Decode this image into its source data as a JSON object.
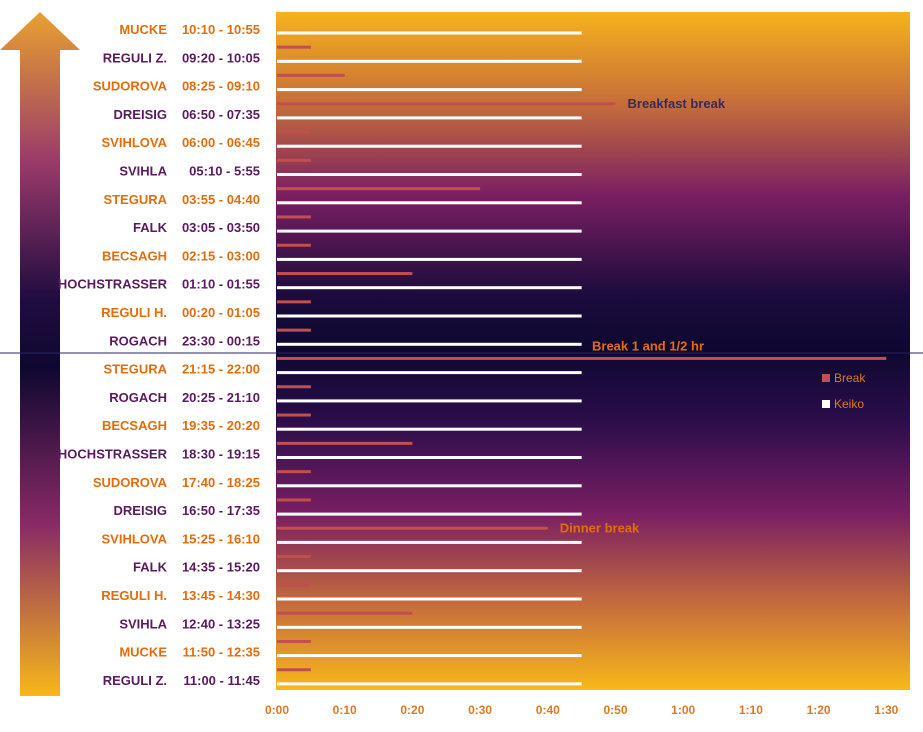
{
  "chart_data": {
    "type": "bar",
    "orientation": "horizontal",
    "x_ticks": [
      "0:00",
      "0:10",
      "0:20",
      "0:30",
      "0:40",
      "0:50",
      "1:00",
      "1:10",
      "1:20",
      "1:30"
    ],
    "xlim_minutes": [
      0,
      90
    ],
    "legend": {
      "placement": "right",
      "items": [
        {
          "name": "Break",
          "color": "#c0504d"
        },
        {
          "name": "Keiko",
          "color": "#ffffff"
        }
      ]
    },
    "shifts": [
      {
        "name": "MUCKE",
        "time": "10:10 - 10:55",
        "color": "#e46c0a"
      },
      {
        "name": "REGULI Z.",
        "time": "09:20 - 10:05",
        "color": "#5a1a5e"
      },
      {
        "name": "SUDOROVA",
        "time": "08:25 - 09:10",
        "color": "#e46c0a"
      },
      {
        "name": "DREISIG",
        "time": "06:50 - 07:35",
        "color": "#5a1a5e"
      },
      {
        "name": "SVIHLOVA",
        "time": "06:00 - 06:45",
        "color": "#e46c0a"
      },
      {
        "name": "SVIHLA",
        "time": "05:10 - 5:55",
        "color": "#5a1a5e"
      },
      {
        "name": "STEGURA",
        "time": "03:55 - 04:40",
        "color": "#e46c0a"
      },
      {
        "name": "FALK",
        "time": "03:05 - 03:50",
        "color": "#5a1a5e"
      },
      {
        "name": "BECSAGH",
        "time": "02:15 - 03:00",
        "color": "#e46c0a"
      },
      {
        "name": "HOCHSTRASSER",
        "time": "01:10 - 01:55",
        "color": "#5a1a5e"
      },
      {
        "name": "REGULI H.",
        "time": "00:20 - 01:05",
        "color": "#e46c0a"
      },
      {
        "name": "ROGACH",
        "time": "23:30 - 00:15",
        "color": "#5a1a5e"
      },
      {
        "name": "STEGURA",
        "time": "21:15 - 22:00",
        "color": "#e46c0a"
      },
      {
        "name": "ROGACH",
        "time": "20:25 - 21:10",
        "color": "#5a1a5e"
      },
      {
        "name": "BECSAGH",
        "time": "19:35 - 20:20",
        "color": "#e46c0a"
      },
      {
        "name": "HOCHSTRASSER",
        "time": "18:30 - 19:15",
        "color": "#5a1a5e"
      },
      {
        "name": "SUDOROVA",
        "time": "17:40 - 18:25",
        "color": "#e46c0a"
      },
      {
        "name": "DREISIG",
        "time": "16:50 - 17:35",
        "color": "#5a1a5e"
      },
      {
        "name": "SVIHLOVA",
        "time": "15:25 - 16:10",
        "color": "#e46c0a"
      },
      {
        "name": "FALK",
        "time": "14:35 - 15:20",
        "color": "#5a1a5e"
      },
      {
        "name": "REGULI H.",
        "time": "13:45 - 14:30",
        "color": "#e46c0a"
      },
      {
        "name": "SVIHLA",
        "time": "12:40 - 13:25",
        "color": "#5a1a5e"
      },
      {
        "name": "MUCKE",
        "time": "11:50 - 12:35",
        "color": "#e46c0a"
      },
      {
        "name": "REGULI Z.",
        "time": "11:00 - 11:45",
        "color": "#5a1a5e"
      }
    ],
    "series": [
      {
        "name": "Keiko",
        "values_minutes": [
          45,
          45,
          45,
          45,
          45,
          45,
          45,
          45,
          45,
          45,
          45,
          45,
          45,
          45,
          45,
          45,
          45,
          45,
          45,
          45,
          45,
          45,
          45,
          45
        ]
      },
      {
        "name": "Break",
        "values_minutes": [
          5,
          10,
          50,
          5,
          5,
          30,
          5,
          5,
          20,
          5,
          5,
          90,
          5,
          5,
          20,
          5,
          5,
          40,
          5,
          5,
          20,
          5,
          5
        ]
      }
    ],
    "annotations": [
      {
        "text": "Breakfast break",
        "break_index": 2,
        "color": "#3a2a5a"
      },
      {
        "text": "Break 1 and 1/2 hr",
        "break_index": 11,
        "color": "#e46c0a"
      },
      {
        "text": "Dinner break",
        "break_index": 17,
        "color": "#e46c0a"
      }
    ]
  }
}
